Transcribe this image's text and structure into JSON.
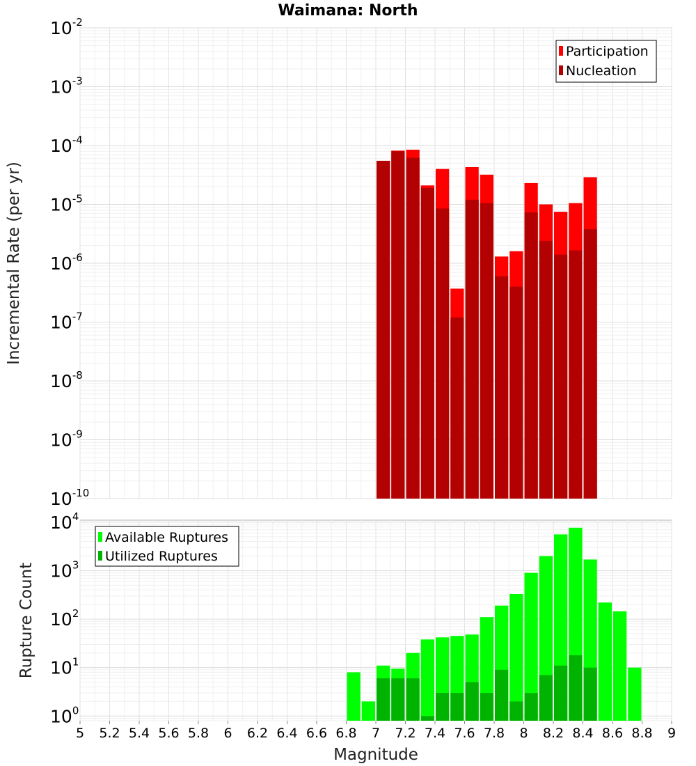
{
  "title": "Waimana: North",
  "x_axis_label": "Magnitude",
  "chart_data": [
    {
      "type": "bar",
      "scale": "log",
      "ylabel": "Incremental Rate (per yr)",
      "xlabel": "Magnitude",
      "xlim": [
        5,
        9
      ],
      "ylim": [
        1e-10,
        0.01
      ],
      "grid": true,
      "legend_position": "top-right",
      "y_ticks": [
        {
          "base": "10",
          "exp": "-10"
        },
        {
          "base": "10",
          "exp": "-9"
        },
        {
          "base": "10",
          "exp": "-8"
        },
        {
          "base": "10",
          "exp": "-7"
        },
        {
          "base": "10",
          "exp": "-6"
        },
        {
          "base": "10",
          "exp": "-5"
        },
        {
          "base": "10",
          "exp": "-4"
        },
        {
          "base": "10",
          "exp": "-3"
        },
        {
          "base": "10",
          "exp": "-2"
        }
      ],
      "x": [
        7.05,
        7.15,
        7.25,
        7.35,
        7.45,
        7.55,
        7.65,
        7.75,
        7.85,
        7.95,
        8.05,
        8.15,
        8.25,
        8.35,
        8.45
      ],
      "series": [
        {
          "name": "Participation",
          "color": "#ff0000",
          "values": [
            5.5e-05,
            8.2e-05,
            8.5e-05,
            2.1e-05,
            4e-05,
            3.7e-07,
            4.3e-05,
            3.2e-05,
            1.3e-06,
            1.6e-06,
            2.3e-05,
            1e-05,
            7.5e-06,
            1.05e-05,
            2.9e-05
          ]
        },
        {
          "name": "Nucleation",
          "color": "#b30000",
          "values": [
            5.5e-05,
            8e-05,
            6.2e-05,
            1.9e-05,
            8.5e-06,
            1.2e-07,
            1.2e-05,
            1.05e-05,
            6e-07,
            4e-07,
            7.3e-06,
            2.4e-06,
            1.4e-06,
            1.65e-06,
            3.8e-06
          ]
        }
      ]
    },
    {
      "type": "bar",
      "scale": "log",
      "ylabel": "Rupture Count",
      "xlabel": "Magnitude",
      "xlim": [
        5,
        9
      ],
      "ylim": [
        0.8,
        11000
      ],
      "grid": true,
      "legend_position": "top-left",
      "y_ticks": [
        {
          "base": "10",
          "exp": "0"
        },
        {
          "base": "10",
          "exp": "1"
        },
        {
          "base": "10",
          "exp": "2"
        },
        {
          "base": "10",
          "exp": "3"
        },
        {
          "base": "10",
          "exp": "4"
        }
      ],
      "x_ticks": [
        "5",
        "5.2",
        "5.4",
        "5.6",
        "5.8",
        "6",
        "6.2",
        "6.4",
        "6.6",
        "6.8",
        "7",
        "7.2",
        "7.4",
        "7.6",
        "7.8",
        "8",
        "8.2",
        "8.4",
        "8.6",
        "8.8",
        "9"
      ],
      "x": [
        6.85,
        6.95,
        7.05,
        7.15,
        7.25,
        7.35,
        7.45,
        7.55,
        7.65,
        7.75,
        7.85,
        7.95,
        8.05,
        8.15,
        8.25,
        8.35,
        8.45,
        8.55,
        8.65,
        8.75
      ],
      "series": [
        {
          "name": "Available Ruptures",
          "color": "#00ff00",
          "values": [
            8,
            2,
            11,
            9.5,
            20,
            38,
            42,
            45,
            48,
            110,
            190,
            330,
            900,
            2000,
            5600,
            7700,
            1700,
            220,
            145,
            10
          ]
        },
        {
          "name": "Utilized Ruptures",
          "color": "#00b300",
          "values": [
            0,
            0,
            6,
            6,
            6,
            1,
            3,
            3,
            5,
            3,
            9,
            2,
            3,
            7,
            11,
            18,
            10,
            0,
            0,
            0
          ]
        }
      ]
    }
  ]
}
